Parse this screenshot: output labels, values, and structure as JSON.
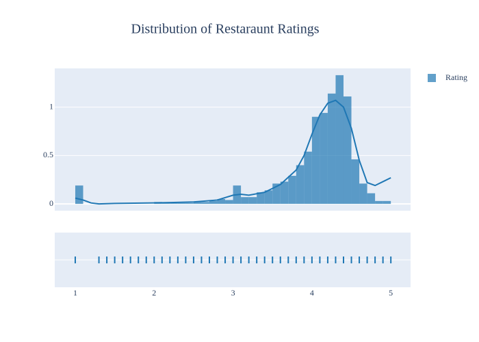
{
  "chart_data": {
    "type": "histogram",
    "title": "Distribution of Restaraunt Ratings",
    "bins": [
      1.0,
      1.1,
      1.2,
      1.3,
      1.4,
      1.5,
      1.6,
      1.7,
      1.8,
      1.9,
      2.0,
      2.1,
      2.2,
      2.3,
      2.4,
      2.5,
      2.6,
      2.7,
      2.8,
      2.9,
      3.0,
      3.1,
      3.2,
      3.3,
      3.4,
      3.5,
      3.6,
      3.7,
      3.8,
      3.9,
      4.0,
      4.1,
      4.2,
      4.3,
      4.4,
      4.5,
      4.6,
      4.7,
      4.8,
      4.9,
      5.0
    ],
    "series": [
      {
        "name": "Rating",
        "color": "#1f77b4",
        "values": [
          0.19,
          0,
          0,
          0,
          0,
          0,
          0,
          0,
          0,
          0,
          0.02,
          0.01,
          0.01,
          0.01,
          0.01,
          0.02,
          0.02,
          0.03,
          0.05,
          0.04,
          0.19,
          0.07,
          0.07,
          0.12,
          0.14,
          0.21,
          0.23,
          0.29,
          0.4,
          0.54,
          0.9,
          0.94,
          1.14,
          1.33,
          1.11,
          0.46,
          0.21,
          0.11,
          0.03,
          0.03
        ],
        "kde": {
          "x": [
            1.0,
            1.1,
            1.2,
            1.3,
            1.5,
            2.0,
            2.5,
            2.8,
            3.0,
            3.1,
            3.2,
            3.4,
            3.6,
            3.8,
            3.9,
            4.0,
            4.1,
            4.2,
            4.3,
            4.4,
            4.5,
            4.6,
            4.7,
            4.8,
            4.9,
            5.0
          ],
          "y": [
            0.06,
            0.04,
            0.01,
            0.0,
            0.005,
            0.01,
            0.02,
            0.04,
            0.09,
            0.1,
            0.09,
            0.12,
            0.2,
            0.35,
            0.5,
            0.72,
            0.92,
            1.04,
            1.07,
            1.0,
            0.78,
            0.45,
            0.22,
            0.19,
            0.23,
            0.27
          ]
        },
        "rug": [
          1.0,
          1.3,
          1.4,
          1.5,
          1.6,
          1.7,
          1.8,
          1.9,
          2.0,
          2.1,
          2.2,
          2.3,
          2.4,
          2.5,
          2.6,
          2.7,
          2.8,
          2.9,
          3.0,
          3.1,
          3.2,
          3.3,
          3.4,
          3.5,
          3.6,
          3.7,
          3.8,
          3.9,
          4.0,
          4.1,
          4.2,
          4.3,
          4.4,
          4.5,
          4.6,
          4.7,
          4.8,
          4.9,
          5.0
        ]
      }
    ],
    "xlim": [
      0.74,
      5.25
    ],
    "xticks": [
      1,
      2,
      3,
      4,
      5
    ],
    "ylim": [
      -0.07,
      1.4
    ],
    "yticks": [
      0,
      0.5,
      1
    ],
    "grid": true
  }
}
